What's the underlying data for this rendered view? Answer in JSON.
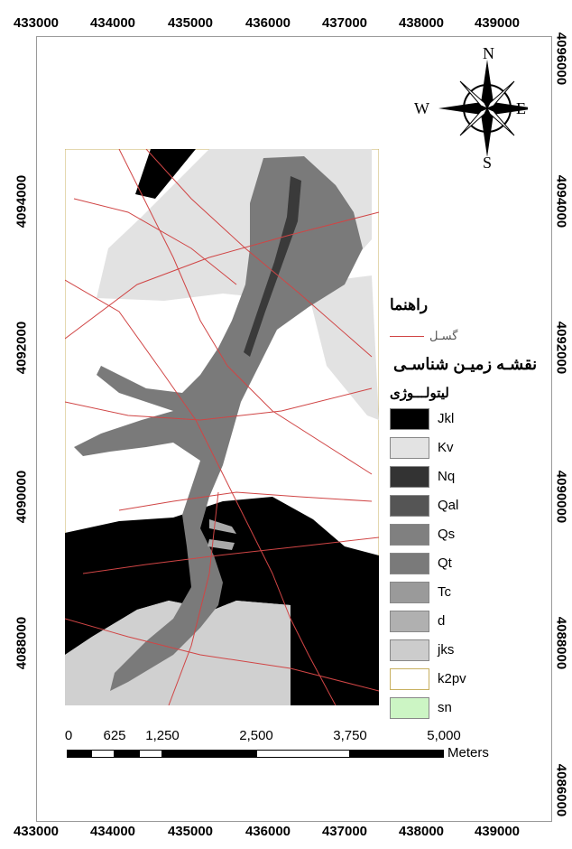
{
  "axes": {
    "easting_ticks": [
      "433000",
      "434000",
      "435000",
      "436000",
      "437000",
      "438000",
      "439000"
    ],
    "northing_ticks_left": [
      "4094000",
      "4092000",
      "4090000",
      "4088000"
    ],
    "northing_ticks_right": [
      "4096000",
      "4094000",
      "4092000",
      "4090000",
      "4088000",
      "4086000"
    ]
  },
  "compass": {
    "n": "N",
    "s": "S",
    "e": "E",
    "w": "W"
  },
  "legend": {
    "title": "راهنما",
    "fault_label": "گسـل",
    "map_title": "نقشـه زمیـن شناسـی",
    "lithology_title": "لیتولـــوژی",
    "items": [
      {
        "label": "Jkl",
        "color": "#000000"
      },
      {
        "label": "Kv",
        "color": "#e3e3e3"
      },
      {
        "label": "Nq",
        "color": "#333333"
      },
      {
        "label": "Qal",
        "color": "#555555"
      },
      {
        "label": "Qs",
        "color": "#808080"
      },
      {
        "label": "Qt",
        "color": "#7a7a7a"
      },
      {
        "label": "Tc",
        "color": "#9a9a9a"
      },
      {
        "label": "d",
        "color": "#b0b0b0"
      },
      {
        "label": "jks",
        "color": "#cccccc"
      },
      {
        "label": "k2pv",
        "color": "#ffffff"
      },
      {
        "label": "sn",
        "color": "#ccf5c4"
      }
    ]
  },
  "scale_bar": {
    "labels": [
      "0",
      "625",
      "1,250",
      "2,500",
      "3,750",
      "5,000"
    ],
    "unit": "Meters"
  },
  "colors": {
    "fault": "#d04545",
    "frame": "#9a9a9a"
  }
}
